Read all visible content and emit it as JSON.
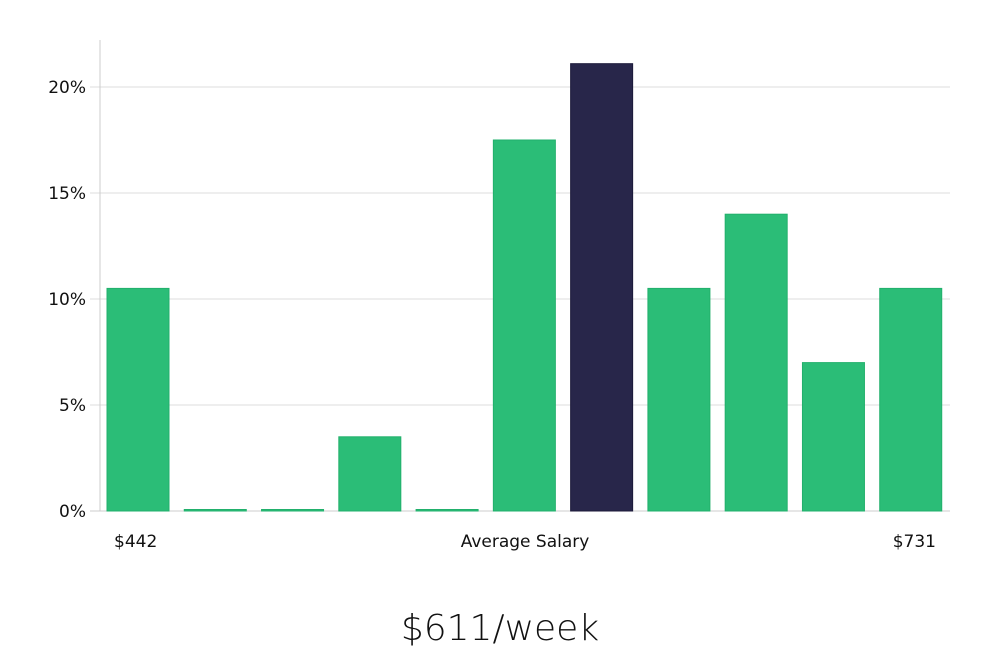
{
  "chart_data": {
    "type": "bar",
    "title": "",
    "xlabel": "Average Salary",
    "ylabel": "",
    "x_range_labels": {
      "min": "$442",
      "max": "$731"
    },
    "categories": [
      "1",
      "2",
      "3",
      "4",
      "5",
      "6",
      "7",
      "8",
      "9",
      "10",
      "11"
    ],
    "values": [
      10.5,
      0,
      0,
      3.5,
      0,
      17.5,
      21.1,
      10.5,
      14.0,
      7.0,
      10.5
    ],
    "highlight_index": 6,
    "ylim": [
      0,
      22.2
    ],
    "yticks": [
      0,
      5,
      10,
      15,
      20
    ],
    "ytick_labels": [
      "0%",
      "5%",
      "10%",
      "15%",
      "20%"
    ],
    "grid": true,
    "colors": {
      "bar": "#2bbd77",
      "highlight": "#28264a",
      "grid": "#dddddd",
      "axis": "#cccccc"
    }
  },
  "headline": "$611/week"
}
